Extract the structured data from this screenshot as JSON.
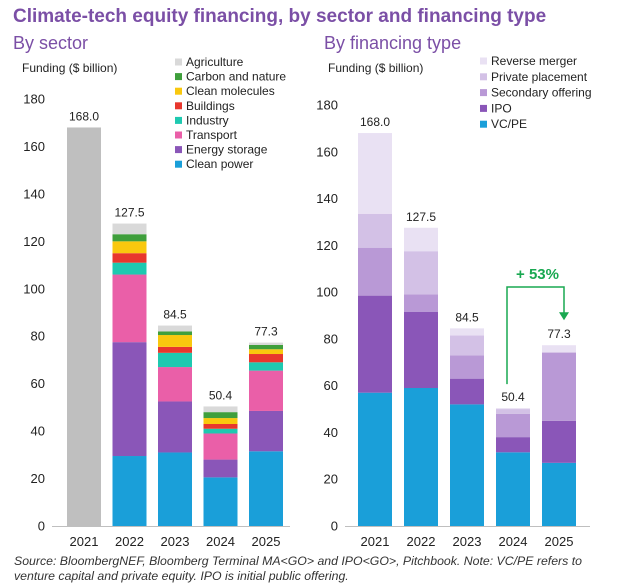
{
  "title": "Climate-tech equity financing, by sector and financing type",
  "source_note": "Source: BloombergNEF, Bloomberg Terminal MA<GO> and IPO<GO>, Pitchbook. Note: VC/PE refers to venture capital and private equity. IPO is initial public offering.",
  "chart_data": [
    {
      "type": "bar",
      "stacked": true,
      "title": "By sector",
      "xlabel": "",
      "ylabel": "Funding ($ billion)",
      "ylim": [
        0,
        180
      ],
      "yticks": [
        0,
        20,
        40,
        60,
        80,
        100,
        120,
        140,
        160,
        180
      ],
      "grid": false,
      "legend_position": "top-right",
      "categories": [
        "2021",
        "2022",
        "2023",
        "2024",
        "2025"
      ],
      "totals": [
        168.0,
        127.5,
        84.5,
        50.4,
        77.3
      ],
      "total_labels": [
        "168.0",
        "127.5",
        "84.5",
        "50.4",
        "77.3"
      ],
      "series": [
        {
          "name": "Clean power",
          "color": "#1a9fd9",
          "values": [
            null,
            29.5,
            31.0,
            20.5,
            31.5
          ]
        },
        {
          "name": "Energy storage",
          "color": "#8a56b8",
          "values": [
            null,
            48.0,
            21.5,
            7.5,
            17.0
          ]
        },
        {
          "name": "Transport",
          "color": "#ea5fa8",
          "values": [
            null,
            28.5,
            14.5,
            11.0,
            17.0
          ]
        },
        {
          "name": "Industry",
          "color": "#1ec9b0",
          "values": [
            null,
            5.0,
            6.0,
            2.0,
            3.5
          ]
        },
        {
          "name": "Buildings",
          "color": "#e8372d",
          "values": [
            null,
            4.0,
            2.5,
            2.0,
            3.5
          ]
        },
        {
          "name": "Clean molecules",
          "color": "#f9c80e",
          "values": [
            null,
            5.0,
            5.0,
            2.5,
            2.0
          ]
        },
        {
          "name": "Carbon and nature",
          "color": "#3f9f3c",
          "values": [
            null,
            3.0,
            1.5,
            2.5,
            1.8
          ]
        },
        {
          "name": "Agriculture",
          "color": "#d9d9d9",
          "values": [
            null,
            4.5,
            2.5,
            2.4,
            1.0
          ]
        },
        {
          "name": "Unallocated (2021)",
          "color": "#bfbfbf",
          "values": [
            168.0,
            null,
            null,
            null,
            null
          ],
          "in_legend": false
        }
      ]
    },
    {
      "type": "bar",
      "stacked": true,
      "title": "By financing type",
      "xlabel": "",
      "ylabel": "Funding ($ billion)",
      "ylim": [
        0,
        180
      ],
      "yticks": [
        0,
        20,
        40,
        60,
        80,
        100,
        120,
        140,
        160,
        180
      ],
      "grid": false,
      "legend_position": "top-right",
      "categories": [
        "2021",
        "2022",
        "2023",
        "2024",
        "2025"
      ],
      "totals": [
        168.0,
        127.5,
        84.5,
        50.4,
        77.3
      ],
      "total_labels": [
        "168.0",
        "127.5",
        "84.5",
        "50.4",
        "77.3"
      ],
      "series": [
        {
          "name": "VC/PE",
          "color": "#1a9fd9",
          "values": [
            57.0,
            59.0,
            52.0,
            31.5,
            27.0
          ]
        },
        {
          "name": "IPO",
          "color": "#8a56b8",
          "values": [
            41.5,
            32.5,
            11.0,
            6.5,
            18.0
          ]
        },
        {
          "name": "Secondary offering",
          "color": "#b999d6",
          "values": [
            20.5,
            7.5,
            10.0,
            10.0,
            29.0
          ]
        },
        {
          "name": "Private placement",
          "color": "#d3c1e6",
          "values": [
            14.5,
            18.5,
            8.5,
            2.0,
            0.5
          ]
        },
        {
          "name": "Reverse merger",
          "color": "#e9e1f3",
          "values": [
            34.5,
            10.0,
            3.0,
            0.4,
            2.8
          ]
        }
      ],
      "annotation": {
        "text": "+ 53%",
        "from": "2024",
        "to": "2025",
        "color": "#19a851"
      }
    }
  ]
}
